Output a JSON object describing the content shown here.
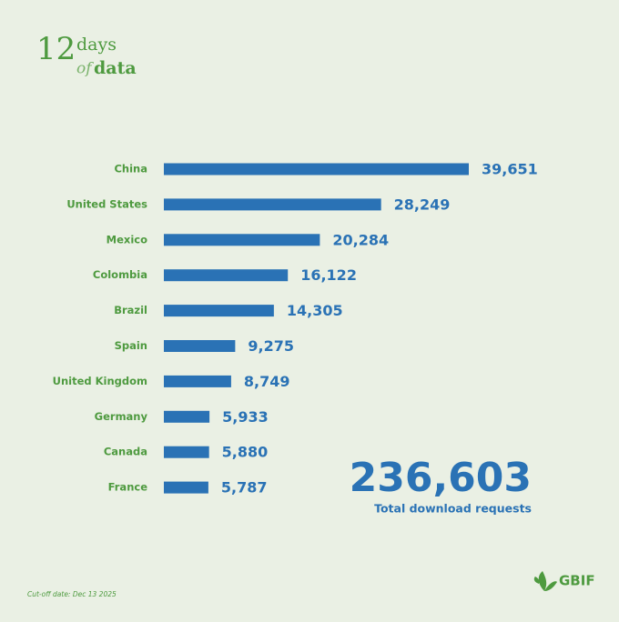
{
  "header": {
    "logo": {
      "number": "12",
      "days": "days",
      "of": "of",
      "data": "data"
    }
  },
  "chart_data": {
    "type": "bar",
    "orientation": "horizontal",
    "categories": [
      "China",
      "United States",
      "Mexico",
      "Colombia",
      "Brazil",
      "Spain",
      "United Kingdom",
      "Germany",
      "Canada",
      "France"
    ],
    "values": [
      39651,
      28249,
      20284,
      16122,
      14305,
      9275,
      8749,
      5933,
      5880,
      5787
    ],
    "value_labels": [
      "39,651",
      "28,249",
      "20,284",
      "16,122",
      "14,305",
      "9,275",
      "8,749",
      "5,933",
      "5,880",
      "5,787"
    ],
    "color": "#2a72b5"
  },
  "summary": {
    "total": "236,603",
    "caption": "Total download requests"
  },
  "footer": {
    "note": "Cut-off date: Dec 13 2025",
    "brand": "GBIF"
  }
}
